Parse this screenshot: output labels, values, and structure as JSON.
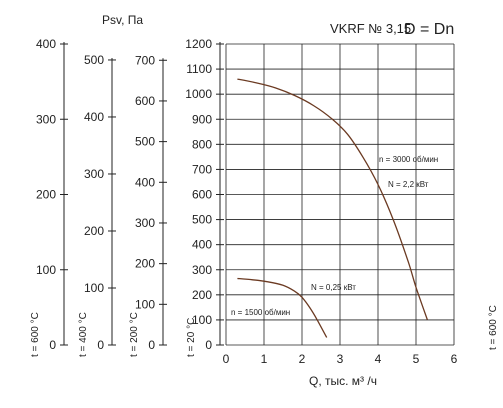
{
  "chart_data": {
    "type": "line",
    "title": "VKRF № 3,15",
    "subtitle": "D = Dn",
    "xlabel": "Q, тыс. м³ /ч",
    "ylabel": "Psv, Па",
    "xlim": [
      0,
      6
    ],
    "x_ticks": [
      "0",
      "1",
      "2",
      "3",
      "4",
      "5",
      "6"
    ],
    "grid": true,
    "axes": [
      {
        "temp_label": "t = 600 °C",
        "ticks": [
          0,
          100,
          200,
          300,
          400
        ],
        "max": 400
      },
      {
        "temp_label": "t = 400 °C",
        "ticks": [
          0,
          100,
          200,
          300,
          400,
          500
        ],
        "max": 528
      },
      {
        "temp_label": "t = 200 °C",
        "ticks": [
          0,
          100,
          200,
          300,
          400,
          500,
          600,
          700
        ],
        "max": 740
      },
      {
        "temp_label": "t = 20 °C",
        "ticks": [
          0,
          100,
          200,
          300,
          400,
          500,
          600,
          700,
          800,
          900,
          1000,
          1100,
          1200
        ],
        "max": 1200
      }
    ],
    "right_edge_label": "t = 600 °C",
    "series": [
      {
        "name": "n = 3000 об/мин",
        "power": "N = 2,2 кВт",
        "x": [
          0.3,
          0.8,
          1.3,
          1.8,
          2.3,
          2.8,
          3.2,
          3.6,
          4.0,
          4.4,
          4.8,
          5.0,
          5.3
        ],
        "y": [
          1060,
          1045,
          1025,
          995,
          955,
          900,
          840,
          750,
          640,
          500,
          330,
          230,
          100
        ]
      },
      {
        "name": "n = 1500 об/мин",
        "power": "N = 0,25 кВт",
        "x": [
          0.3,
          0.7,
          1.1,
          1.5,
          1.8,
          2.0,
          2.2,
          2.4,
          2.65
        ],
        "y": [
          265,
          260,
          252,
          238,
          215,
          190,
          150,
          100,
          30
        ]
      }
    ]
  }
}
